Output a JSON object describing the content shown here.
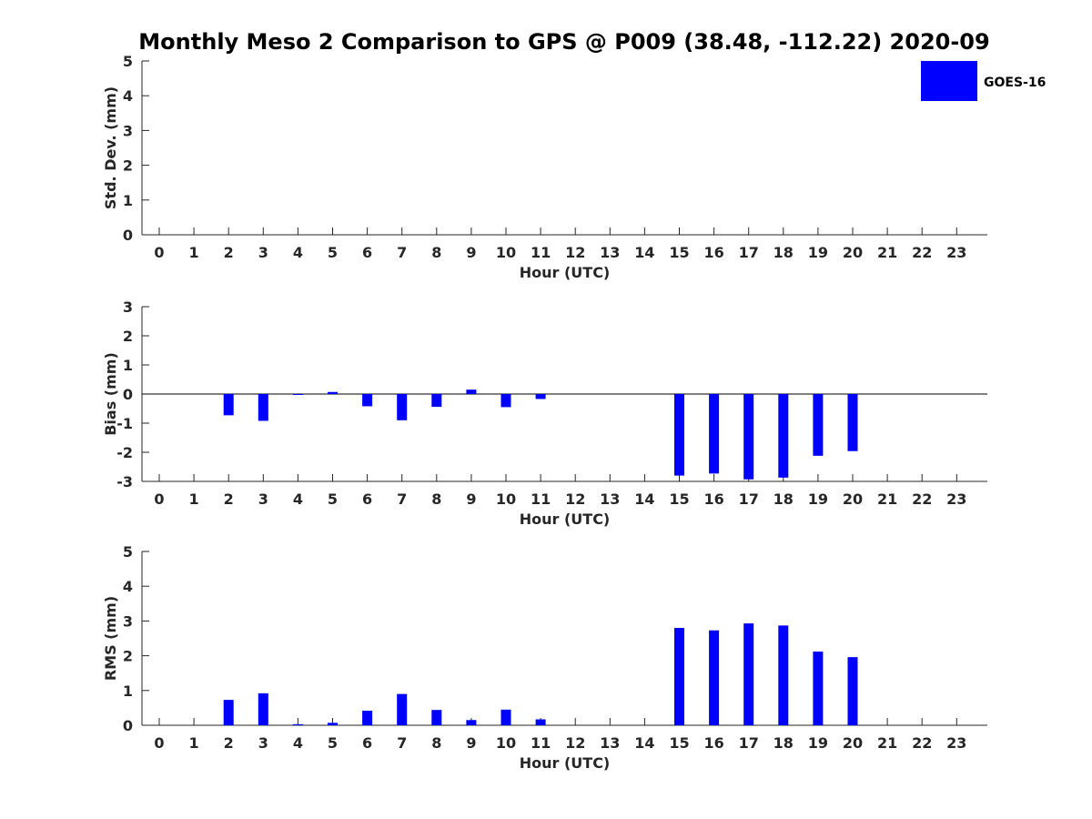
{
  "title": "Monthly Meso 2 Comparison to GPS @ P009 (38.48, -112.22) 2020-09",
  "legend": {
    "label": "GOES-16",
    "color": "#0000ff",
    "position": "top-right"
  },
  "colors": {
    "bar": "#0000ff",
    "axis": "#262626"
  },
  "chart_data": [
    {
      "type": "bar",
      "title": "Monthly Meso 2 Comparison to GPS @ P009 (38.48, -112.22) 2020-09",
      "xlabel": "Hour (UTC)",
      "ylabel": "Std. Dev. (mm)",
      "categories": [
        "0",
        "1",
        "2",
        "3",
        "4",
        "5",
        "6",
        "7",
        "8",
        "9",
        "10",
        "11",
        "12",
        "13",
        "14",
        "15",
        "16",
        "17",
        "18",
        "19",
        "20",
        "21",
        "22",
        "23"
      ],
      "ylim": [
        0,
        5
      ],
      "yticks": [
        "0",
        "1",
        "2",
        "3",
        "4",
        "5"
      ],
      "series": [
        {
          "name": "GOES-16",
          "values": [
            0,
            0,
            0,
            0,
            0,
            0,
            0,
            0,
            0,
            0,
            0,
            0,
            0,
            0,
            0,
            0,
            0,
            0,
            0,
            0,
            0,
            0,
            0,
            0
          ]
        }
      ],
      "grid": false,
      "legend": "top-right"
    },
    {
      "type": "bar",
      "xlabel": "Hour (UTC)",
      "ylabel": "Bias (mm)",
      "categories": [
        "0",
        "1",
        "2",
        "3",
        "4",
        "5",
        "6",
        "7",
        "8",
        "9",
        "10",
        "11",
        "12",
        "13",
        "14",
        "15",
        "16",
        "17",
        "18",
        "19",
        "20",
        "21",
        "22",
        "23"
      ],
      "ylim": [
        -3,
        3
      ],
      "yticks": [
        "-3",
        "-2",
        "-1",
        "0",
        "1",
        "2",
        "3"
      ],
      "series": [
        {
          "name": "GOES-16",
          "values": [
            0,
            0,
            -0.73,
            -0.92,
            -0.03,
            0.07,
            -0.42,
            -0.9,
            -0.44,
            0.15,
            -0.45,
            -0.17,
            0,
            0,
            0,
            -2.8,
            -2.73,
            -2.93,
            -2.87,
            -2.12,
            -1.96,
            0,
            0,
            0
          ]
        }
      ],
      "grid": false
    },
    {
      "type": "bar",
      "xlabel": "Hour (UTC)",
      "ylabel": "RMS (mm)",
      "categories": [
        "0",
        "1",
        "2",
        "3",
        "4",
        "5",
        "6",
        "7",
        "8",
        "9",
        "10",
        "11",
        "12",
        "13",
        "14",
        "15",
        "16",
        "17",
        "18",
        "19",
        "20",
        "21",
        "22",
        "23"
      ],
      "ylim": [
        0,
        5
      ],
      "yticks": [
        "0",
        "1",
        "2",
        "3",
        "4",
        "5"
      ],
      "series": [
        {
          "name": "GOES-16",
          "values": [
            0,
            0,
            0.73,
            0.92,
            0.03,
            0.07,
            0.42,
            0.9,
            0.44,
            0.15,
            0.45,
            0.17,
            0,
            0,
            0,
            2.8,
            2.73,
            2.93,
            2.87,
            2.12,
            1.96,
            0,
            0,
            0
          ]
        }
      ],
      "grid": false
    }
  ]
}
